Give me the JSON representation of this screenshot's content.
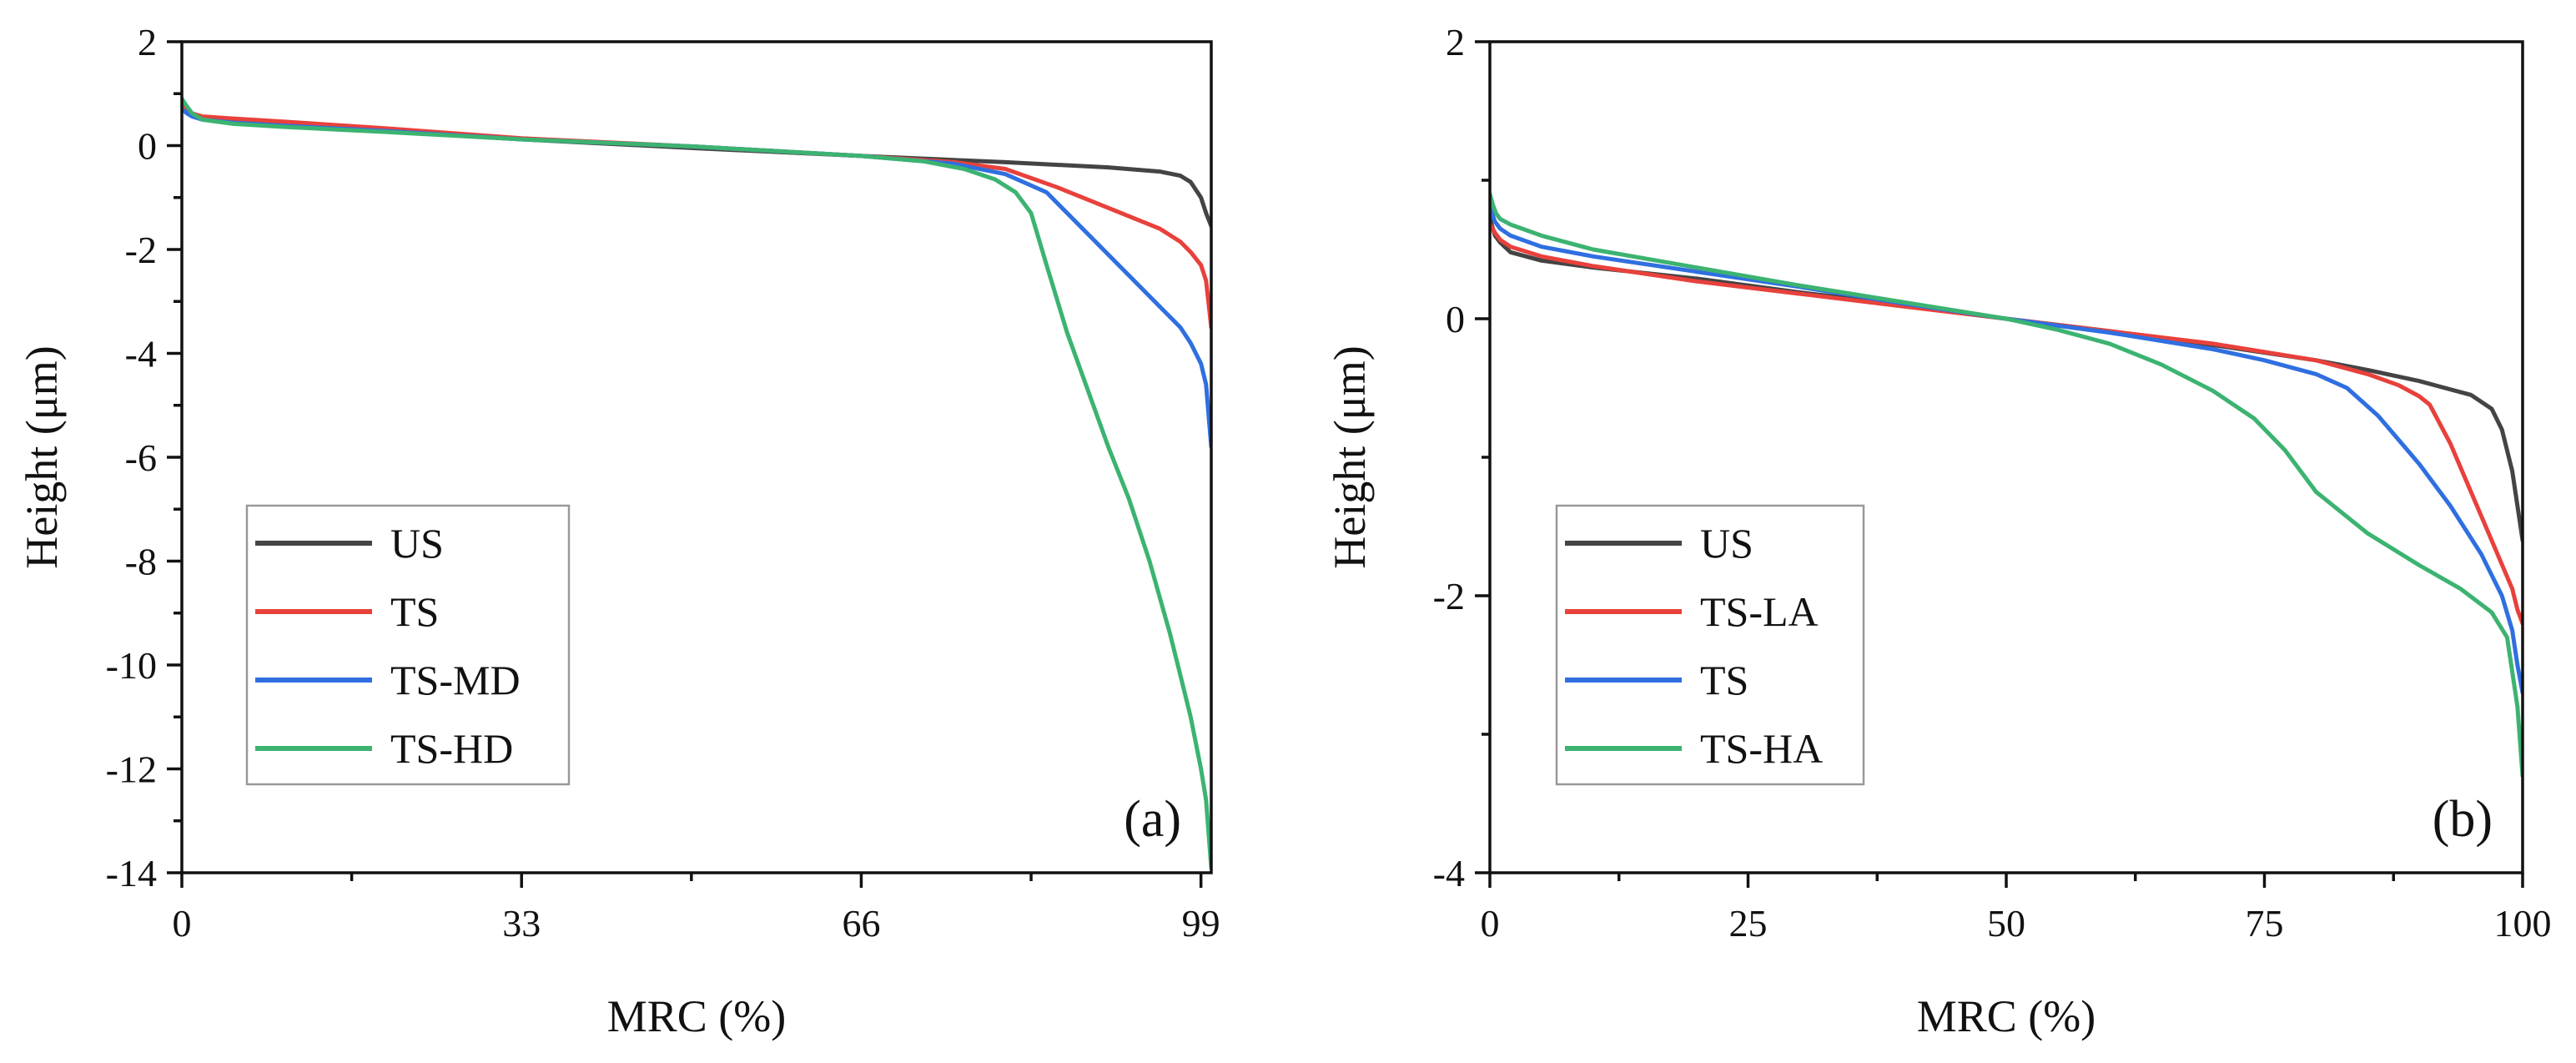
{
  "chart_data": [
    {
      "type": "line",
      "panel_label": "(a)",
      "xlabel": "MRC (%)",
      "ylabel": "Height (μm)",
      "xlim": [
        0,
        100
      ],
      "ylim": [
        -14,
        2
      ],
      "xticks": [
        0,
        33,
        66,
        99
      ],
      "xtick_labels": [
        "0",
        "33",
        "66",
        "99"
      ],
      "yticks": [
        2,
        0,
        -2,
        -4,
        -6,
        -8,
        -10,
        -12,
        -14
      ],
      "ytick_labels": [
        "2",
        "0",
        "-2",
        "-4",
        "-6",
        "-8",
        "-10",
        "-12",
        "-14"
      ],
      "legend_position": "center-left",
      "colors": {
        "US": "#444444",
        "TS": "#e8413c",
        "TS-MD": "#2f6fe0",
        "TS-HD": "#3cb371"
      },
      "series": [
        {
          "name": "US",
          "x": [
            0,
            0.5,
            1,
            2,
            5,
            10,
            20,
            33,
            50,
            66,
            80,
            90,
            95,
            97,
            98,
            99,
            99.5,
            100
          ],
          "y": [
            0.85,
            0.72,
            0.62,
            0.52,
            0.45,
            0.38,
            0.28,
            0.12,
            -0.05,
            -0.2,
            -0.32,
            -0.42,
            -0.5,
            -0.58,
            -0.7,
            -1.0,
            -1.3,
            -1.55
          ]
        },
        {
          "name": "TS",
          "x": [
            0,
            0.5,
            1,
            2,
            5,
            10,
            20,
            33,
            50,
            66,
            75,
            80,
            85,
            90,
            95,
            97,
            98,
            99,
            99.5,
            100
          ],
          "y": [
            0.75,
            0.68,
            0.62,
            0.56,
            0.52,
            0.46,
            0.33,
            0.14,
            -0.02,
            -0.2,
            -0.32,
            -0.45,
            -0.8,
            -1.2,
            -1.6,
            -1.85,
            -2.05,
            -2.3,
            -2.6,
            -3.5
          ]
        },
        {
          "name": "TS-MD",
          "x": [
            0,
            0.5,
            1,
            2,
            5,
            10,
            20,
            33,
            50,
            66,
            75,
            80,
            84,
            88,
            92,
            95,
            97,
            98,
            99,
            99.5,
            100
          ],
          "y": [
            0.7,
            0.62,
            0.56,
            0.5,
            0.44,
            0.38,
            0.28,
            0.12,
            -0.02,
            -0.2,
            -0.35,
            -0.55,
            -0.9,
            -1.7,
            -2.5,
            -3.1,
            -3.5,
            -3.8,
            -4.2,
            -4.6,
            -5.8
          ]
        },
        {
          "name": "TS-HD",
          "x": [
            0,
            0.5,
            1,
            2,
            5,
            10,
            20,
            33,
            50,
            66,
            72,
            76,
            79,
            81,
            82.5,
            84,
            86,
            88,
            90,
            92,
            94,
            96,
            97,
            98,
            99,
            99.5,
            100
          ],
          "y": [
            0.9,
            0.75,
            0.62,
            0.5,
            0.42,
            0.36,
            0.26,
            0.12,
            -0.02,
            -0.2,
            -0.3,
            -0.45,
            -0.65,
            -0.9,
            -1.3,
            -2.3,
            -3.6,
            -4.7,
            -5.8,
            -6.8,
            -8.0,
            -9.4,
            -10.2,
            -11.0,
            -12.0,
            -12.6,
            -13.9
          ]
        }
      ]
    },
    {
      "type": "line",
      "panel_label": "(b)",
      "xlabel": "MRC (%)",
      "ylabel": "Height (μm)",
      "xlim": [
        0,
        100
      ],
      "ylim": [
        -4,
        2
      ],
      "xticks": [
        0,
        25,
        50,
        75,
        100
      ],
      "xtick_labels": [
        "0",
        "25",
        "50",
        "75",
        "100"
      ],
      "yticks": [
        2,
        0,
        -2,
        -4
      ],
      "ytick_labels": [
        "2",
        "0",
        "-2",
        "-4"
      ],
      "legend_position": "lower-left",
      "colors": {
        "US": "#444444",
        "TS-LA": "#e8413c",
        "TS": "#2f6fe0",
        "TS-HA": "#3cb371"
      },
      "series": [
        {
          "name": "US",
          "x": [
            0,
            0.5,
            1,
            2,
            5,
            10,
            20,
            30,
            40,
            50,
            60,
            70,
            80,
            85,
            90,
            95,
            97,
            98,
            99,
            99.5,
            100
          ],
          "y": [
            0.72,
            0.6,
            0.55,
            0.48,
            0.42,
            0.37,
            0.29,
            0.19,
            0.1,
            0.0,
            -0.09,
            -0.19,
            -0.3,
            -0.37,
            -0.45,
            -0.55,
            -0.65,
            -0.8,
            -1.1,
            -1.35,
            -1.6
          ]
        },
        {
          "name": "TS-LA",
          "x": [
            0,
            0.5,
            1,
            2,
            5,
            10,
            20,
            30,
            40,
            50,
            60,
            70,
            80,
            85,
            88,
            90,
            91,
            93,
            95,
            97,
            99,
            99.5,
            100
          ],
          "y": [
            0.68,
            0.62,
            0.57,
            0.52,
            0.45,
            0.38,
            0.27,
            0.18,
            0.09,
            0.0,
            -0.09,
            -0.18,
            -0.3,
            -0.4,
            -0.48,
            -0.56,
            -0.62,
            -0.9,
            -1.25,
            -1.6,
            -1.95,
            -2.1,
            -2.2
          ]
        },
        {
          "name": "TS",
          "x": [
            0,
            0.5,
            1,
            2,
            5,
            10,
            20,
            30,
            40,
            50,
            60,
            70,
            75,
            80,
            83,
            86,
            90,
            93,
            96,
            98,
            99,
            99.5,
            100
          ],
          "y": [
            0.8,
            0.7,
            0.65,
            0.6,
            0.52,
            0.45,
            0.34,
            0.23,
            0.11,
            0.0,
            -0.1,
            -0.22,
            -0.3,
            -0.4,
            -0.5,
            -0.7,
            -1.05,
            -1.35,
            -1.7,
            -2.0,
            -2.25,
            -2.5,
            -2.7
          ]
        },
        {
          "name": "TS-HA",
          "x": [
            0,
            0.3,
            0.6,
            1,
            2,
            5,
            10,
            20,
            30,
            40,
            50,
            55,
            60,
            65,
            70,
            74,
            77,
            80,
            85,
            90,
            94,
            97,
            98.5,
            99.5,
            100
          ],
          "y": [
            0.9,
            0.82,
            0.76,
            0.72,
            0.68,
            0.6,
            0.5,
            0.37,
            0.24,
            0.12,
            0.0,
            -0.08,
            -0.18,
            -0.33,
            -0.52,
            -0.72,
            -0.95,
            -1.25,
            -1.55,
            -1.78,
            -1.95,
            -2.12,
            -2.3,
            -2.8,
            -3.3
          ]
        }
      ]
    }
  ]
}
